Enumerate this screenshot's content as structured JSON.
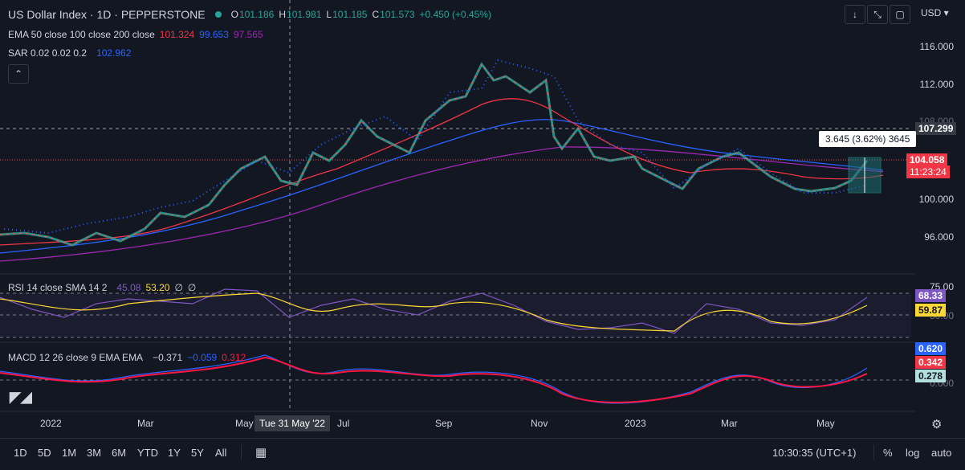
{
  "header": {
    "symbol": "US Dollar Index · 1D · PEPPERSTONE",
    "o_label": "O",
    "o_value": "101.186",
    "h_label": "H",
    "h_value": "101.981",
    "l_label": "L",
    "l_value": "101.185",
    "c_label": "C",
    "c_value": "101.573",
    "change": "+0.450 (+0.45%)"
  },
  "indicators": {
    "ema_label": "EMA 50 close 100 close 200 close",
    "ema50": "101.324",
    "ema100": "99.653",
    "ema200": "97.565",
    "sar_label": "SAR 0.02 0.02 0.2",
    "sar_value": "102.962",
    "rsi_label": "RSI 14 close SMA 14 2",
    "rsi_value": "45.08",
    "rsi_sma": "53.20",
    "rsi_e1": "∅",
    "rsi_e2": "∅",
    "macd_label": "MACD 12 26 close 9 EMA EMA",
    "macd_hist": "−0.371",
    "macd_line": "−0.059",
    "macd_signal": "0.312"
  },
  "price_axis": {
    "currency": "USD",
    "ticks": [
      "116.000",
      "112.000",
      "108.000",
      "100.000",
      "96.000"
    ],
    "crosshair_price": "107.299",
    "last_price": "104.058",
    "countdown": "11:23:24"
  },
  "measure": {
    "text": "3.645 (3.62%) 3645"
  },
  "rsi_axis": {
    "t75": "75.00",
    "t50": "50.00",
    "v1": "68.33",
    "v2": "59.87"
  },
  "macd_axis": {
    "v1": "0.620",
    "v2": "0.342",
    "v3": "0.278",
    "t0": "0.000"
  },
  "time_axis": {
    "labels": [
      "2022",
      "Mar",
      "May",
      "Jul",
      "Sep",
      "Nov",
      "2023",
      "Mar",
      "May"
    ],
    "crosshair_date": "Tue 31 May '22"
  },
  "toolbar": {
    "timeframes": [
      "1D",
      "5D",
      "1M",
      "3M",
      "6M",
      "YTD",
      "1Y",
      "5Y",
      "All"
    ],
    "clock": "10:30:35 (UTC+1)",
    "percent": "%",
    "log": "log",
    "auto": "auto"
  },
  "colors": {
    "up": "#26a69a",
    "down": "#ef5350",
    "ema50": "#f23645",
    "ema100": "#2962ff",
    "ema200": "#9c27b0",
    "sar": "#2962ff",
    "rsi": "#7e57c2",
    "rsi_sma": "#fdd835",
    "macd": "#2962ff",
    "signal": "#ff1744"
  }
}
